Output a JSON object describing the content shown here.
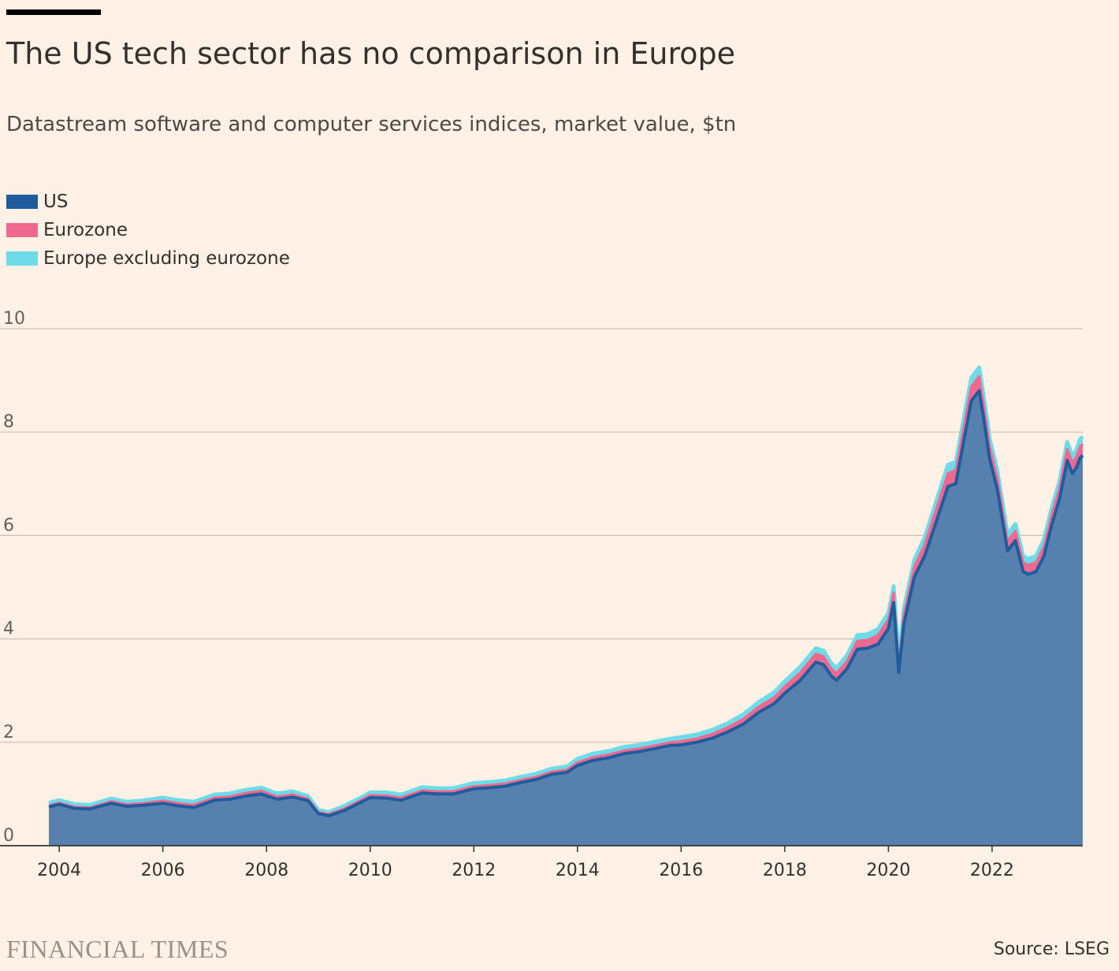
{
  "header": {
    "title": "The US tech sector has no comparison in Europe",
    "subtitle": "Datastream software and computer services indices, market value, $tn"
  },
  "legend": [
    {
      "label": "US",
      "color": "#1F5C9E"
    },
    {
      "label": "Eurozone",
      "color": "#F0688F"
    },
    {
      "label": "Europe excluding eurozone",
      "color": "#6EDCE8"
    }
  ],
  "footer": {
    "brand": "FINANCIAL TIMES",
    "source": "Source: LSEG"
  },
  "chart_data": {
    "type": "area",
    "stacked": true,
    "title": "The US tech sector has no comparison in Europe",
    "ylabel": "$tn",
    "ylim": [
      0,
      10
    ],
    "yticks": [
      0,
      2,
      4,
      6,
      8,
      10
    ],
    "xlim": [
      2003.8,
      2023.75
    ],
    "xticks": [
      2004,
      2006,
      2008,
      2010,
      2012,
      2014,
      2016,
      2018,
      2020,
      2022
    ],
    "xtick_labels": [
      "2004",
      "2006",
      "2008",
      "2010",
      "2012",
      "2014",
      "2016",
      "2018",
      "2020",
      "2022"
    ],
    "x": [
      2003.8,
      2004.0,
      2004.3,
      2004.6,
      2005.0,
      2005.3,
      2005.6,
      2006.0,
      2006.3,
      2006.6,
      2007.0,
      2007.3,
      2007.6,
      2007.9,
      2008.2,
      2008.5,
      2008.8,
      2009.0,
      2009.2,
      2009.5,
      2009.8,
      2010.0,
      2010.3,
      2010.6,
      2011.0,
      2011.3,
      2011.6,
      2012.0,
      2012.3,
      2012.6,
      2012.9,
      2013.2,
      2013.5,
      2013.8,
      2014.0,
      2014.3,
      2014.6,
      2014.9,
      2015.2,
      2015.5,
      2015.8,
      2016.0,
      2016.3,
      2016.6,
      2016.9,
      2017.2,
      2017.5,
      2017.8,
      2018.0,
      2018.3,
      2018.6,
      2018.75,
      2018.9,
      2019.0,
      2019.2,
      2019.4,
      2019.6,
      2019.8,
      2020.0,
      2020.1,
      2020.2,
      2020.3,
      2020.5,
      2020.7,
      2020.9,
      2021.0,
      2021.15,
      2021.3,
      2021.45,
      2021.6,
      2021.75,
      2021.85,
      2021.95,
      2022.1,
      2022.3,
      2022.45,
      2022.6,
      2022.7,
      2022.85,
      2023.0,
      2023.15,
      2023.3,
      2023.45,
      2023.55,
      2023.62,
      2023.7,
      2023.75
    ],
    "series": [
      {
        "name": "US",
        "values": [
          0.75,
          0.8,
          0.72,
          0.71,
          0.82,
          0.76,
          0.78,
          0.82,
          0.77,
          0.74,
          0.88,
          0.9,
          0.96,
          1.0,
          0.9,
          0.94,
          0.87,
          0.62,
          0.58,
          0.68,
          0.83,
          0.93,
          0.92,
          0.88,
          1.02,
          1.0,
          1.0,
          1.1,
          1.12,
          1.15,
          1.22,
          1.28,
          1.38,
          1.42,
          1.55,
          1.65,
          1.7,
          1.78,
          1.82,
          1.88,
          1.94,
          1.95,
          2.0,
          2.08,
          2.2,
          2.35,
          2.58,
          2.75,
          2.95,
          3.2,
          3.55,
          3.5,
          3.28,
          3.2,
          3.42,
          3.8,
          3.82,
          3.9,
          4.2,
          4.7,
          3.35,
          4.3,
          5.2,
          5.6,
          6.2,
          6.5,
          6.95,
          7.0,
          7.8,
          8.6,
          8.8,
          8.2,
          7.5,
          6.9,
          5.7,
          5.9,
          5.3,
          5.25,
          5.3,
          5.6,
          6.2,
          6.7,
          7.45,
          7.2,
          7.3,
          7.5,
          7.55
        ]
      },
      {
        "name": "Eurozone",
        "values": [
          0.03,
          0.03,
          0.03,
          0.03,
          0.04,
          0.04,
          0.04,
          0.05,
          0.05,
          0.05,
          0.05,
          0.05,
          0.06,
          0.06,
          0.05,
          0.05,
          0.04,
          0.03,
          0.03,
          0.04,
          0.04,
          0.05,
          0.05,
          0.05,
          0.05,
          0.05,
          0.05,
          0.05,
          0.05,
          0.05,
          0.05,
          0.05,
          0.05,
          0.05,
          0.06,
          0.06,
          0.06,
          0.06,
          0.06,
          0.06,
          0.06,
          0.07,
          0.07,
          0.08,
          0.09,
          0.1,
          0.11,
          0.12,
          0.13,
          0.15,
          0.16,
          0.16,
          0.14,
          0.14,
          0.15,
          0.16,
          0.16,
          0.17,
          0.18,
          0.19,
          0.16,
          0.18,
          0.2,
          0.22,
          0.24,
          0.25,
          0.26,
          0.26,
          0.27,
          0.28,
          0.28,
          0.26,
          0.24,
          0.22,
          0.19,
          0.19,
          0.18,
          0.18,
          0.18,
          0.19,
          0.2,
          0.21,
          0.22,
          0.21,
          0.21,
          0.22,
          0.22
        ]
      },
      {
        "name": "Europe excluding eurozone",
        "values": [
          0.05,
          0.05,
          0.05,
          0.05,
          0.05,
          0.05,
          0.05,
          0.06,
          0.06,
          0.06,
          0.06,
          0.06,
          0.06,
          0.06,
          0.06,
          0.06,
          0.05,
          0.04,
          0.04,
          0.05,
          0.05,
          0.05,
          0.06,
          0.06,
          0.06,
          0.06,
          0.06,
          0.06,
          0.06,
          0.06,
          0.06,
          0.06,
          0.06,
          0.06,
          0.07,
          0.07,
          0.07,
          0.07,
          0.07,
          0.07,
          0.07,
          0.08,
          0.08,
          0.08,
          0.08,
          0.09,
          0.09,
          0.1,
          0.1,
          0.11,
          0.11,
          0.11,
          0.1,
          0.1,
          0.11,
          0.11,
          0.11,
          0.12,
          0.12,
          0.13,
          0.11,
          0.12,
          0.13,
          0.14,
          0.15,
          0.15,
          0.16,
          0.16,
          0.16,
          0.17,
          0.17,
          0.16,
          0.15,
          0.14,
          0.13,
          0.13,
          0.12,
          0.12,
          0.12,
          0.13,
          0.13,
          0.13,
          0.14,
          0.13,
          0.13,
          0.14,
          0.14
        ]
      }
    ]
  }
}
